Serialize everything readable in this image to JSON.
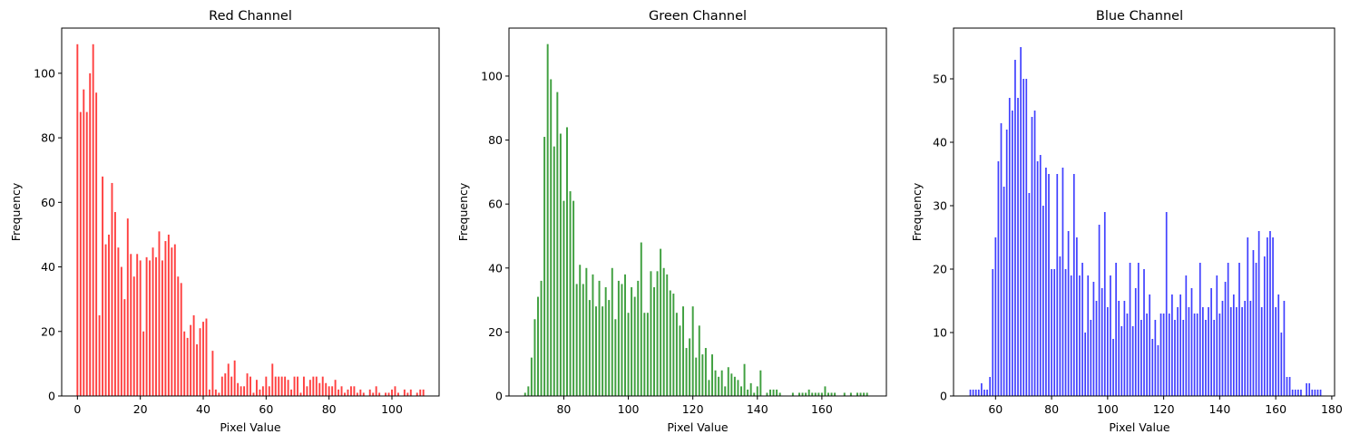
{
  "chart_data": [
    {
      "type": "bar",
      "title": "Red Channel",
      "xlabel": "Pixel Value",
      "ylabel": "Frequency",
      "color": "#ff0000",
      "xlim": [
        -5,
        115
      ],
      "ylim": [
        0,
        114
      ],
      "xticks": [
        0,
        20,
        40,
        60,
        80,
        100
      ],
      "yticks": [
        0,
        20,
        40,
        60,
        80,
        100
      ],
      "grid": false,
      "x": [
        0,
        1,
        2,
        3,
        4,
        5,
        6,
        7,
        8,
        9,
        10,
        11,
        12,
        13,
        14,
        15,
        16,
        17,
        18,
        19,
        20,
        21,
        22,
        23,
        24,
        25,
        26,
        27,
        28,
        29,
        30,
        31,
        32,
        33,
        34,
        35,
        36,
        37,
        38,
        39,
        40,
        41,
        42,
        43,
        44,
        45,
        46,
        47,
        48,
        49,
        50,
        51,
        52,
        53,
        54,
        55,
        56,
        57,
        58,
        59,
        60,
        61,
        62,
        63,
        64,
        65,
        66,
        67,
        68,
        69,
        70,
        71,
        72,
        73,
        74,
        75,
        76,
        77,
        78,
        79,
        80,
        81,
        82,
        83,
        84,
        85,
        86,
        87,
        88,
        89,
        90,
        91,
        92,
        93,
        94,
        95,
        96,
        97,
        98,
        99,
        100,
        101,
        102,
        103,
        104,
        105,
        106,
        107,
        108,
        109,
        110
      ],
      "values": [
        109,
        88,
        95,
        88,
        100,
        109,
        94,
        25,
        68,
        47,
        50,
        66,
        57,
        46,
        40,
        30,
        55,
        44,
        37,
        44,
        42,
        20,
        43,
        42,
        46,
        43,
        51,
        42,
        48,
        50,
        46,
        47,
        37,
        35,
        20,
        18,
        22,
        25,
        16,
        21,
        23,
        24,
        2,
        14,
        2,
        1,
        6,
        7,
        10,
        6,
        11,
        4,
        3,
        3,
        7,
        6,
        1,
        5,
        2,
        3,
        6,
        3,
        10,
        6,
        6,
        6,
        6,
        5,
        2,
        6,
        6,
        1,
        6,
        3,
        5,
        6,
        6,
        4,
        6,
        4,
        3,
        3,
        5,
        2,
        3,
        1,
        2,
        3,
        3,
        1,
        2,
        1,
        0,
        2,
        1,
        3,
        1,
        0,
        1,
        1,
        2,
        3,
        1,
        0,
        2,
        1,
        2,
        0,
        1,
        2,
        2
      ]
    },
    {
      "type": "bar",
      "title": "Green Channel",
      "xlabel": "Pixel Value",
      "ylabel": "Frequency",
      "color": "#008000",
      "xlim": [
        63,
        180
      ],
      "ylim": [
        0,
        115
      ],
      "xticks": [
        80,
        100,
        120,
        140,
        160
      ],
      "yticks": [
        0,
        20,
        40,
        60,
        80,
        100
      ],
      "grid": false,
      "x": [
        68,
        69,
        70,
        71,
        72,
        73,
        74,
        75,
        76,
        77,
        78,
        79,
        80,
        81,
        82,
        83,
        84,
        85,
        86,
        87,
        88,
        89,
        90,
        91,
        92,
        93,
        94,
        95,
        96,
        97,
        98,
        99,
        100,
        101,
        102,
        103,
        104,
        105,
        106,
        107,
        108,
        109,
        110,
        111,
        112,
        113,
        114,
        115,
        116,
        117,
        118,
        119,
        120,
        121,
        122,
        123,
        124,
        125,
        126,
        127,
        128,
        129,
        130,
        131,
        132,
        133,
        134,
        135,
        136,
        137,
        138,
        139,
        140,
        141,
        142,
        143,
        144,
        145,
        146,
        147,
        148,
        149,
        150,
        151,
        152,
        153,
        154,
        155,
        156,
        157,
        158,
        159,
        160,
        161,
        162,
        163,
        164,
        165,
        166,
        167,
        168,
        169,
        170,
        171,
        172,
        173,
        174
      ],
      "values": [
        1,
        3,
        12,
        24,
        31,
        36,
        81,
        110,
        99,
        78,
        95,
        82,
        61,
        84,
        64,
        61,
        35,
        41,
        35,
        40,
        30,
        38,
        28,
        36,
        28,
        34,
        30,
        40,
        24,
        36,
        35,
        38,
        26,
        34,
        31,
        36,
        48,
        26,
        26,
        39,
        34,
        39,
        46,
        40,
        38,
        33,
        32,
        26,
        22,
        28,
        15,
        18,
        28,
        12,
        22,
        13,
        15,
        5,
        13,
        8,
        6,
        8,
        3,
        9,
        7,
        6,
        5,
        3,
        10,
        2,
        4,
        1,
        3,
        8,
        0,
        1,
        2,
        2,
        2,
        1,
        0,
        0,
        0,
        1,
        0,
        1,
        1,
        1,
        2,
        1,
        1,
        1,
        1,
        3,
        1,
        1,
        1,
        0,
        0,
        1,
        0,
        1,
        0,
        1,
        1,
        1,
        1
      ]
    },
    {
      "type": "bar",
      "title": "Blue Channel",
      "xlabel": "Pixel Value",
      "ylabel": "Frequency",
      "color": "#0000ff",
      "xlim": [
        45,
        181
      ],
      "ylim": [
        0,
        58
      ],
      "xticks": [
        60,
        80,
        100,
        120,
        140,
        160,
        180
      ],
      "yticks": [
        0,
        10,
        20,
        30,
        40,
        50
      ],
      "grid": false,
      "x": [
        51,
        52,
        53,
        54,
        55,
        56,
        57,
        58,
        59,
        60,
        61,
        62,
        63,
        64,
        65,
        66,
        67,
        68,
        69,
        70,
        71,
        72,
        73,
        74,
        75,
        76,
        77,
        78,
        79,
        80,
        81,
        82,
        83,
        84,
        85,
        86,
        87,
        88,
        89,
        90,
        91,
        92,
        93,
        94,
        95,
        96,
        97,
        98,
        99,
        100,
        101,
        102,
        103,
        104,
        105,
        106,
        107,
        108,
        109,
        110,
        111,
        112,
        113,
        114,
        115,
        116,
        117,
        118,
        119,
        120,
        121,
        122,
        123,
        124,
        125,
        126,
        127,
        128,
        129,
        130,
        131,
        132,
        133,
        134,
        135,
        136,
        137,
        138,
        139,
        140,
        141,
        142,
        143,
        144,
        145,
        146,
        147,
        148,
        149,
        150,
        151,
        152,
        153,
        154,
        155,
        156,
        157,
        158,
        159,
        160,
        161,
        162,
        163,
        164,
        165,
        166,
        167,
        168,
        169,
        170,
        171,
        172,
        173,
        174,
        175,
        176
      ],
      "values": [
        1,
        1,
        1,
        1,
        2,
        1,
        1,
        3,
        20,
        25,
        37,
        43,
        33,
        42,
        47,
        45,
        53,
        47,
        55,
        50,
        50,
        32,
        44,
        45,
        37,
        38,
        30,
        36,
        35,
        20,
        20,
        35,
        22,
        36,
        20,
        26,
        19,
        35,
        25,
        19,
        21,
        10,
        19,
        12,
        18,
        15,
        27,
        17,
        29,
        14,
        19,
        9,
        21,
        15,
        11,
        15,
        13,
        21,
        11,
        17,
        21,
        12,
        20,
        13,
        16,
        9,
        12,
        8,
        13,
        13,
        29,
        13,
        16,
        12,
        14,
        16,
        12,
        19,
        14,
        17,
        13,
        13,
        21,
        14,
        12,
        14,
        17,
        12,
        19,
        13,
        15,
        18,
        21,
        14,
        16,
        14,
        21,
        14,
        15,
        25,
        15,
        23,
        21,
        26,
        14,
        22,
        25,
        26,
        25,
        14,
        16,
        10,
        15,
        3,
        3,
        1,
        1,
        1,
        1,
        0,
        2,
        2,
        1,
        1,
        1,
        1
      ]
    }
  ]
}
